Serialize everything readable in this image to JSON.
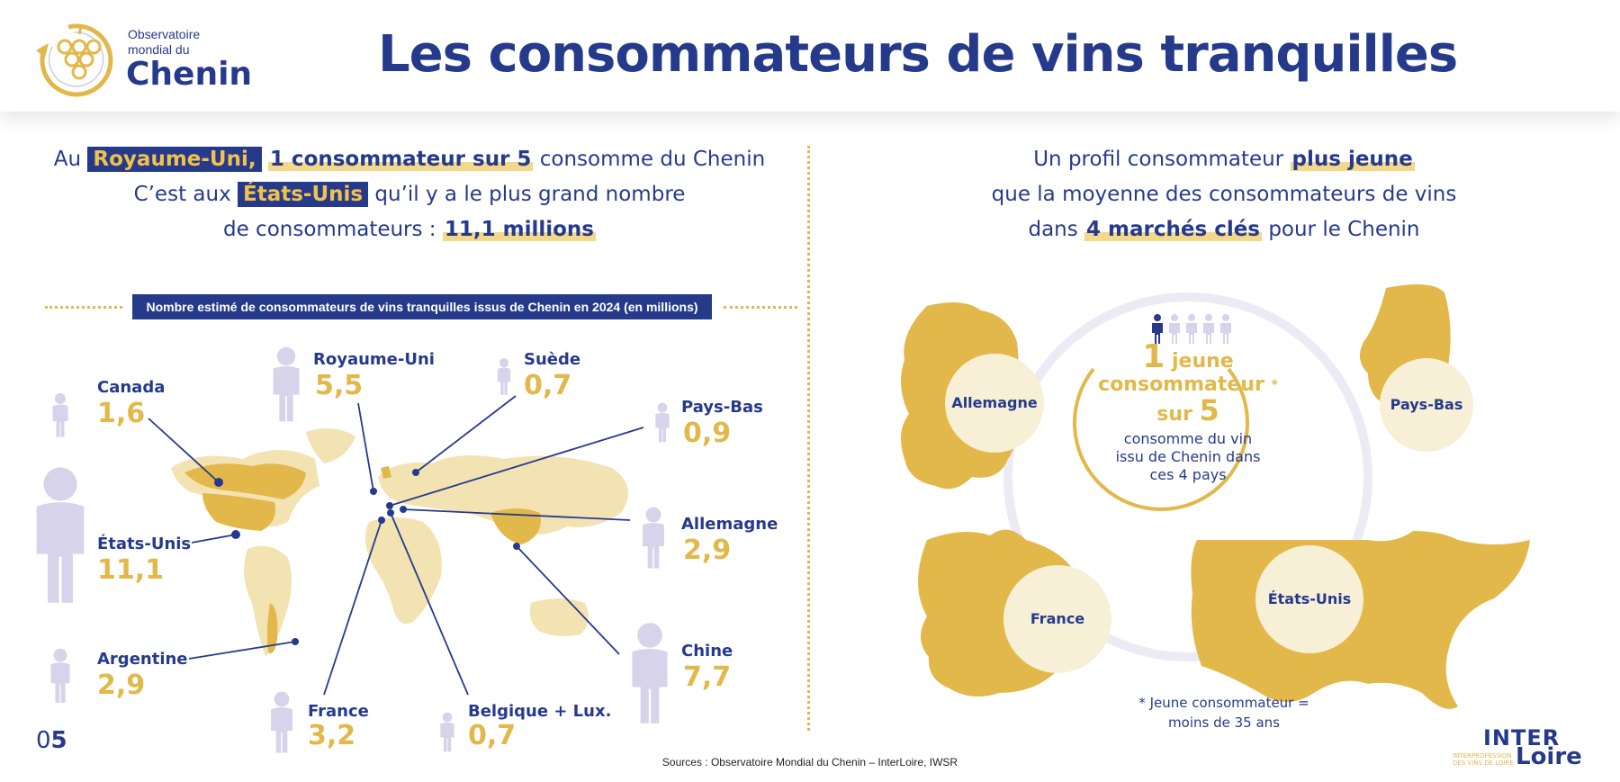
{
  "header": {
    "logo_line1": "Observatoire",
    "logo_line2": "mondial du",
    "logo_name": "Chenin",
    "title": "Les consommateurs de vins tranquilles"
  },
  "left_text": {
    "l1_a": "Au",
    "l1_tag": "Royaume-Uni,",
    "l1_b": "1 consommateur sur 5",
    "l1_c": "consomme du Chenin",
    "l2_a": "C’est aux",
    "l2_tag": "États-Unis",
    "l2_b": "qu’il y a le plus grand nombre",
    "l3_a": "de consommateurs :",
    "l3_b": "11,1 millions"
  },
  "right_text": {
    "l1_a": "Un profil consommateur",
    "l1_b": "plus jeune",
    "l2": "que la moyenne des consommateurs de vins",
    "l3_a": "dans",
    "l3_b": "4 marchés clés",
    "l3_c": "pour le Chenin"
  },
  "chart_data": {
    "type": "map",
    "title": "Nombre estimé de consommateurs de vins tranquilles issus de Chenin en 2024 (en millions)",
    "unit": "millions",
    "points": [
      {
        "country": "Canada",
        "value": "1,6"
      },
      {
        "country": "Royaume-Uni",
        "value": "5,5"
      },
      {
        "country": "Suède",
        "value": "0,7"
      },
      {
        "country": "Pays-Bas",
        "value": "0,9"
      },
      {
        "country": "Allemagne",
        "value": "2,9"
      },
      {
        "country": "États-Unis",
        "value": "11,1"
      },
      {
        "country": "Chine",
        "value": "7,7"
      },
      {
        "country": "Argentine",
        "value": "2,9"
      },
      {
        "country": "France",
        "value": "3,2"
      },
      {
        "country": "Belgique + Lux.",
        "value": "0,7"
      }
    ]
  },
  "young_profile": {
    "markets": [
      "Allemagne",
      "Pays-Bas",
      "France",
      "États-Unis"
    ],
    "ratio_num": "1",
    "ratio_word": "jeune",
    "ratio_word2": "consommateur",
    "ratio_star": "*",
    "ratio_sur": "sur",
    "ratio_den": "5",
    "desc1": "consomme du vin",
    "desc2": "issu de Chenin dans",
    "desc3": "ces 4 pays",
    "footnote1": "* Jeune consommateur =",
    "footnote2": "moins de 35 ans",
    "ratio_highlighted": 1,
    "ratio_total": 5
  },
  "footer": {
    "page_prefix": "0",
    "page_num": "5",
    "source": "Sources : Observatoire Mondial du Chenin – InterLoire, IWSR",
    "brand_top": "INTER",
    "brand_bottom": "Loire",
    "brand_sub1": "INTERPROFESSION",
    "brand_sub2": "DES VINS DE LOIRE"
  },
  "colors": {
    "navy": "#263a8c",
    "gold": "#e2b84a",
    "light_gold": "#f3e3b3",
    "person": "#d6d3ea"
  }
}
